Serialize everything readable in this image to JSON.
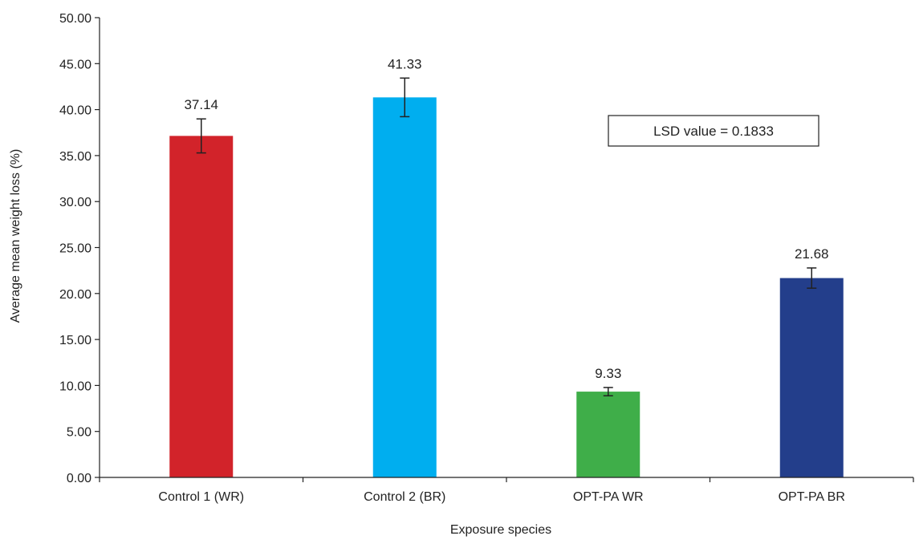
{
  "chart_data": {
    "type": "bar",
    "categories": [
      "Control 1 (WR)",
      "Control 2 (BR)",
      "OPT-PA WR",
      "OPT-PA BR"
    ],
    "values": [
      37.14,
      41.33,
      9.33,
      21.68
    ],
    "value_labels": [
      "37.14",
      "41.33",
      "9.33",
      "21.68"
    ],
    "errors": [
      1.85,
      2.1,
      0.45,
      1.1
    ],
    "colors": [
      "#d2232a",
      "#00aeef",
      "#3fae49",
      "#233e8b"
    ],
    "title": "",
    "xlabel": "Exposure species",
    "ylabel": "Average mean weight loss (%)",
    "ylim": [
      0,
      50
    ],
    "yticks": [
      0,
      5,
      10,
      15,
      20,
      25,
      30,
      35,
      40,
      45,
      50
    ],
    "ytick_labels": [
      "0.00",
      "5.00",
      "10.00",
      "15.00",
      "20.00",
      "25.00",
      "30.00",
      "35.00",
      "40.00",
      "45.00",
      "50.00"
    ],
    "grid": false,
    "annotation": "LSD value = 0.1833"
  }
}
